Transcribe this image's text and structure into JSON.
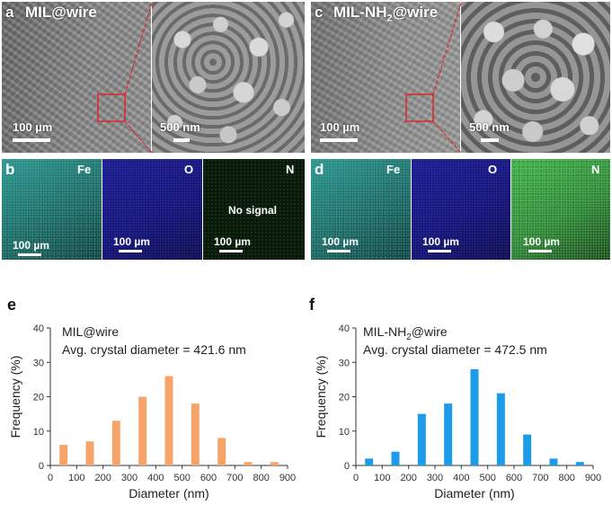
{
  "colors": {
    "mil_bar": "#f7a46b",
    "nh2_bar": "#1e9be8",
    "fe_map": "#2a8a86",
    "o_map": "#14146e",
    "n_map_mil": "#0a1a0a",
    "n_map_nh2": "#2f8a3a",
    "zoom_lines": "#e0242a"
  },
  "panels": {
    "a": {
      "letter": "a",
      "title": "MIL@wire",
      "scale_left": "100 µm",
      "scale_right": "500 nm"
    },
    "c": {
      "letter": "c",
      "title_main": "MIL-NH",
      "title_sub": "2",
      "title_tail": "@wire",
      "scale_left": "100 µm",
      "scale_right": "500 nm"
    },
    "b": {
      "letter": "b",
      "maps": [
        {
          "element": "Fe",
          "scale": "100 µm",
          "note": ""
        },
        {
          "element": "O",
          "scale": "100 µm",
          "note": ""
        },
        {
          "element": "N",
          "scale": "100 µm",
          "note": "No signal"
        }
      ]
    },
    "d": {
      "letter": "d",
      "maps": [
        {
          "element": "Fe",
          "scale": "100 µm"
        },
        {
          "element": "O",
          "scale": "100 µm"
        },
        {
          "element": "N",
          "scale": "100 µm"
        }
      ]
    },
    "e": {
      "letter": "e",
      "line1": "MIL@wire",
      "line2": "Avg. crystal diameter = 421.6 nm"
    },
    "f": {
      "letter": "f",
      "line1_main": "MIL-NH",
      "line1_sub": "2",
      "line1_tail": "@wire",
      "line2": "Avg. crystal diameter = 472.5 nm"
    }
  },
  "chart_data": [
    {
      "type": "bar",
      "categories": [
        "50",
        "150",
        "250",
        "350",
        "450",
        "550",
        "650",
        "750",
        "850"
      ],
      "x": [
        50,
        150,
        250,
        350,
        450,
        550,
        650,
        750,
        850
      ],
      "series": [
        {
          "name": "MIL@wire",
          "values": [
            6,
            7,
            13,
            20,
            26,
            18,
            8,
            1,
            1
          ]
        }
      ],
      "xlabel": "Diameter (nm)",
      "ylabel": "Frequency (%)",
      "xlim": [
        0,
        900
      ],
      "ylim": [
        0,
        40
      ],
      "xticks": [
        "0",
        "100",
        "200",
        "300",
        "400",
        "500",
        "600",
        "700",
        "800",
        "900"
      ],
      "yticks": [
        "0",
        "10",
        "20",
        "30",
        "40"
      ],
      "grid": false
    },
    {
      "type": "bar",
      "categories": [
        "50",
        "150",
        "250",
        "350",
        "450",
        "550",
        "650",
        "750",
        "850"
      ],
      "x": [
        50,
        150,
        250,
        350,
        450,
        550,
        650,
        750,
        850
      ],
      "series": [
        {
          "name": "MIL-NH2@wire",
          "values": [
            2,
            4,
            15,
            18,
            28,
            21,
            9,
            2,
            1
          ]
        }
      ],
      "xlabel": "Diameter (nm)",
      "ylabel": "Frequency (%)",
      "xlim": [
        0,
        900
      ],
      "ylim": [
        0,
        40
      ],
      "xticks": [
        "0",
        "100",
        "200",
        "300",
        "400",
        "500",
        "600",
        "700",
        "800",
        "900"
      ],
      "yticks": [
        "0",
        "10",
        "20",
        "30",
        "40"
      ],
      "grid": false
    }
  ]
}
